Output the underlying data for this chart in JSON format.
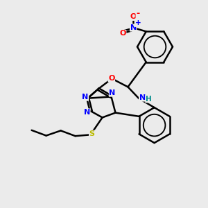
{
  "bg_color": "#ebebeb",
  "atom_colors": {
    "C": "#000000",
    "N": "#0000ff",
    "O": "#ff0000",
    "S": "#bbbb00",
    "H": "#008b8b"
  },
  "bond_color": "#000000",
  "bond_width": 1.8,
  "fig_size": [
    3.0,
    3.0
  ],
  "dpi": 100
}
